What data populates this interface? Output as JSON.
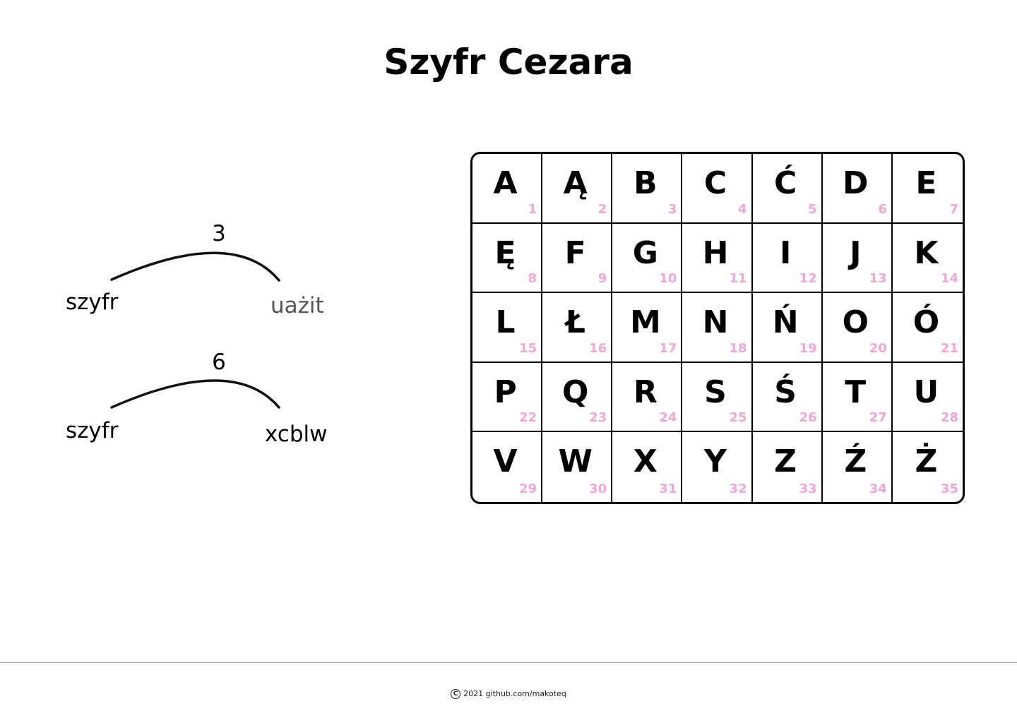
{
  "title": "Szyfr Cezara",
  "examples": [
    {
      "shift": "3",
      "plain": "szyfr",
      "cipher": "uażit"
    },
    {
      "shift": "6",
      "plain": "szyfr",
      "cipher": "xcblw"
    }
  ],
  "alphabet": [
    {
      "letter": "A",
      "num": "1"
    },
    {
      "letter": "Ą",
      "num": "2"
    },
    {
      "letter": "B",
      "num": "3"
    },
    {
      "letter": "C",
      "num": "4"
    },
    {
      "letter": "Ć",
      "num": "5"
    },
    {
      "letter": "D",
      "num": "6"
    },
    {
      "letter": "E",
      "num": "7"
    },
    {
      "letter": "Ę",
      "num": "8"
    },
    {
      "letter": "F",
      "num": "9"
    },
    {
      "letter": "G",
      "num": "10"
    },
    {
      "letter": "H",
      "num": "11"
    },
    {
      "letter": "I",
      "num": "12"
    },
    {
      "letter": "J",
      "num": "13"
    },
    {
      "letter": "K",
      "num": "14"
    },
    {
      "letter": "L",
      "num": "15"
    },
    {
      "letter": "Ł",
      "num": "16"
    },
    {
      "letter": "M",
      "num": "17"
    },
    {
      "letter": "N",
      "num": "18"
    },
    {
      "letter": "Ń",
      "num": "19"
    },
    {
      "letter": "O",
      "num": "20"
    },
    {
      "letter": "Ó",
      "num": "21"
    },
    {
      "letter": "P",
      "num": "22"
    },
    {
      "letter": "Q",
      "num": "23"
    },
    {
      "letter": "R",
      "num": "24"
    },
    {
      "letter": "S",
      "num": "25"
    },
    {
      "letter": "Ś",
      "num": "26"
    },
    {
      "letter": "T",
      "num": "27"
    },
    {
      "letter": "U",
      "num": "28"
    },
    {
      "letter": "V",
      "num": "29"
    },
    {
      "letter": "W",
      "num": "30"
    },
    {
      "letter": "X",
      "num": "31"
    },
    {
      "letter": "Y",
      "num": "32"
    },
    {
      "letter": "Z",
      "num": "33"
    },
    {
      "letter": "Ź",
      "num": "34"
    },
    {
      "letter": "Ż",
      "num": "35"
    }
  ],
  "footer": {
    "icon": "copyright-icon",
    "text": "2021 github.com/makoteq"
  },
  "colors": {
    "number": "#f2a6d6",
    "muted_word": "#555555"
  }
}
